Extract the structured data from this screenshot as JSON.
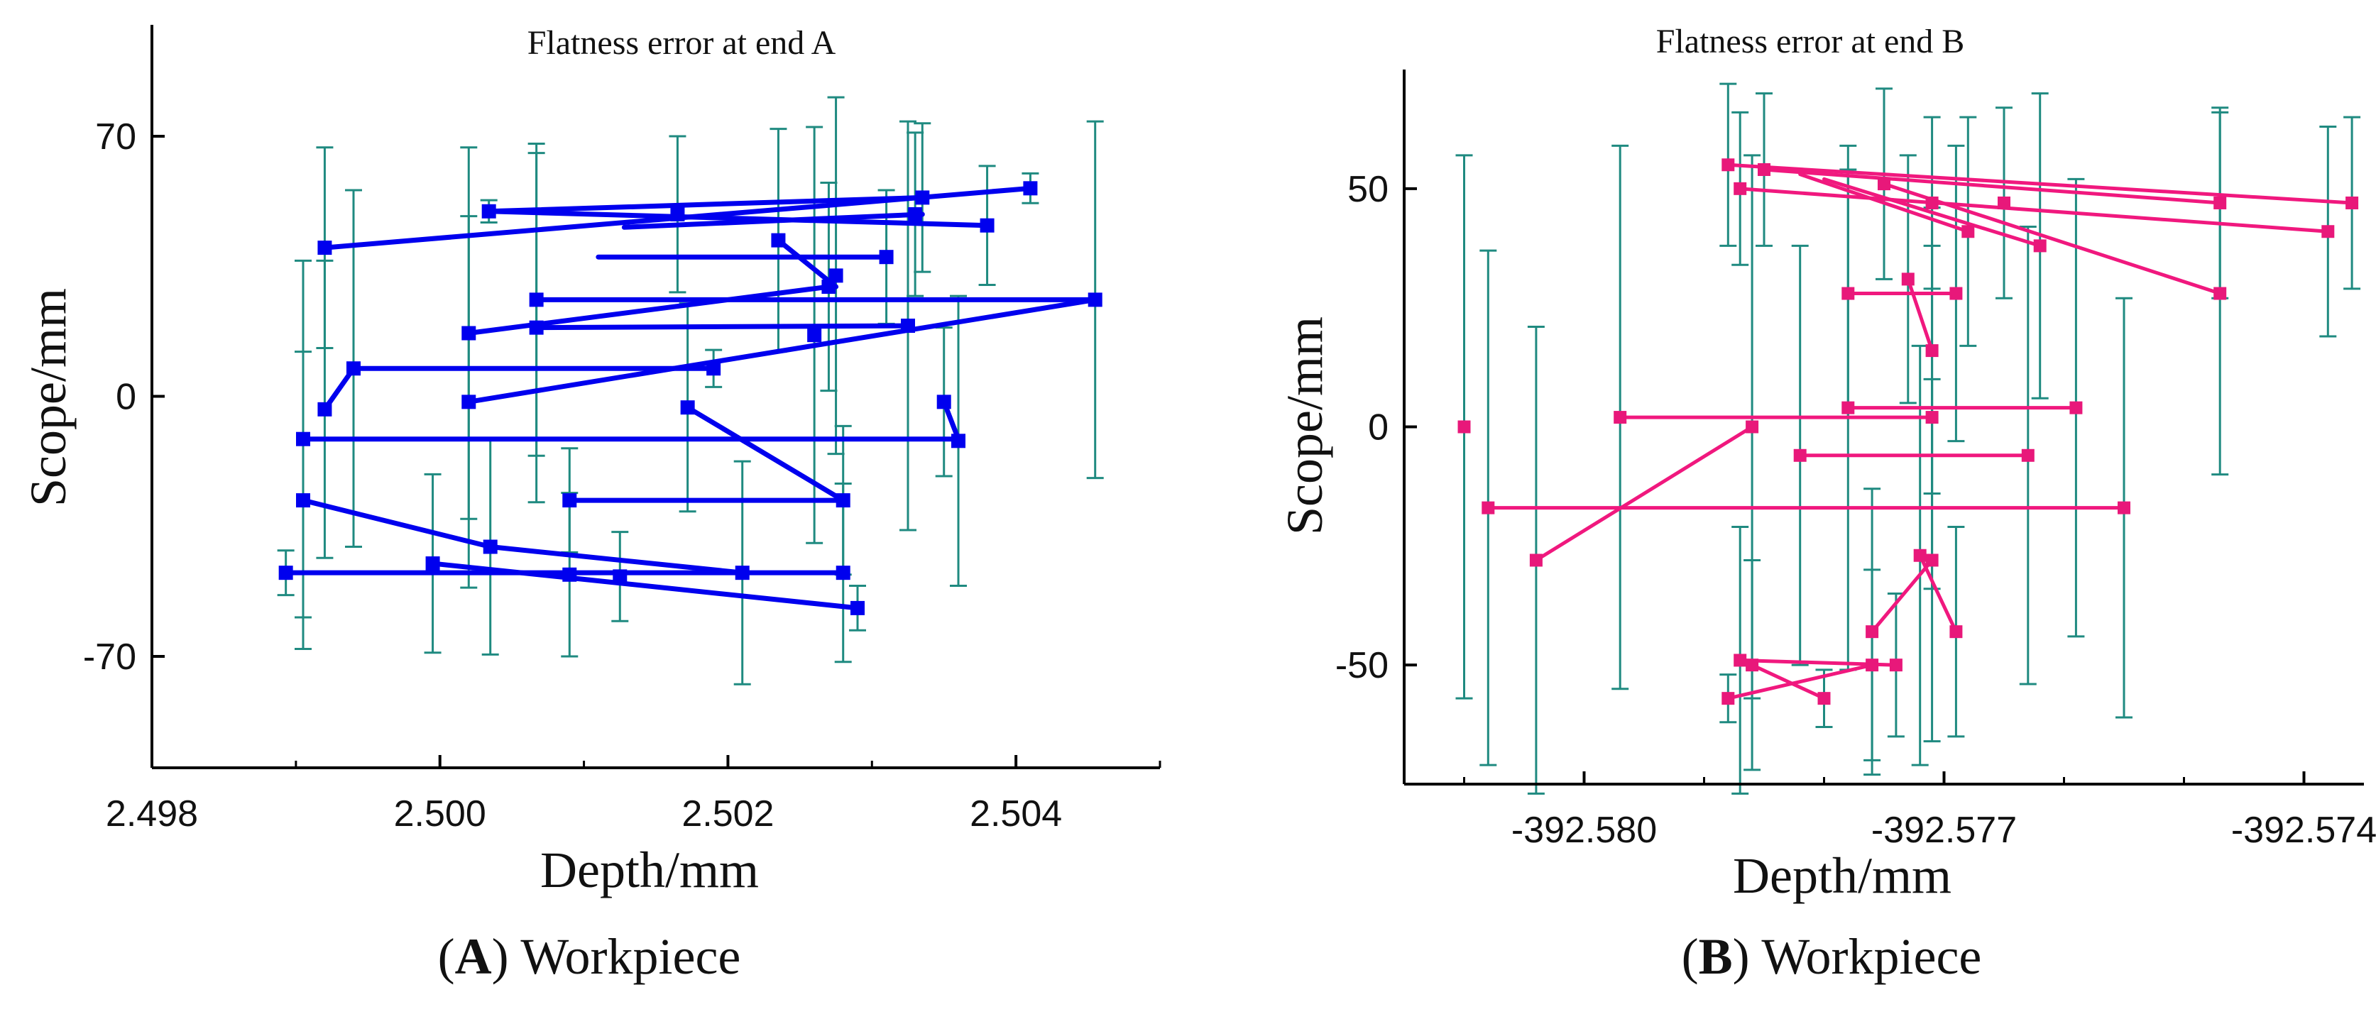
{
  "chart_data": [
    {
      "type": "scatter",
      "title": "Flatness error at end A",
      "xlabel": "Depth/mm",
      "ylabel": "Scope/mm",
      "caption_letter": "A",
      "caption_text": "Workpiece",
      "xlim": [
        2.498,
        2.505
      ],
      "ylim": [
        -100,
        100
      ],
      "x_ticks": [
        2.498,
        2.5,
        2.502,
        2.504
      ],
      "x_tick_labels": [
        "2.498",
        "2.500",
        "2.502",
        "2.504"
      ],
      "x_minor_ticks": [
        2.499,
        2.501,
        2.503,
        2.505
      ],
      "y_ticks": [
        -70,
        0,
        70
      ],
      "y_tick_labels": [
        "-70",
        "0",
        "70"
      ],
      "line_color": "#0000ee",
      "errorbar_color": "#1f8a80",
      "points": [
        {
          "x": 2.5035,
          "y": -1.5,
          "err": 20
        },
        {
          "x": 2.5031,
          "y": 37.5,
          "err": 18
        },
        {
          "x": 2.5036,
          "y": -12,
          "err": 39
        },
        {
          "x": 2.5041,
          "y": 56,
          "err": 4
        },
        {
          "x": 2.50455,
          "y": 26,
          "err": 48
        },
        {
          "x": 2.50034,
          "y": 49.8,
          "err": 3
        },
        {
          "x": 2.5027,
          "y": 29.5,
          "err": 28
        },
        {
          "x": 2.50235,
          "y": 42,
          "err": 30
        },
        {
          "x": 2.50172,
          "y": -3,
          "err": 28
        },
        {
          "x": 2.5028,
          "y": -28,
          "err": 20
        },
        {
          "x": 2.5009,
          "y": -28,
          "err": 14
        },
        {
          "x": 2.5033,
          "y": 49,
          "err": 22
        },
        {
          "x": 2.50067,
          "y": 26,
          "err": 42
        },
        {
          "x": 2.5038,
          "y": 46,
          "err": 16
        },
        {
          "x": 2.50165,
          "y": 49,
          "err": 21
        },
        {
          "x": 2.5026,
          "y": 16.5,
          "err": 56
        },
        {
          "x": 2.50275,
          "y": 32.5,
          "err": 48
        },
        {
          "x": 2.50325,
          "y": 19,
          "err": 55
        },
        {
          "x": 2.5002,
          "y": 17,
          "err": 50
        },
        {
          "x": 2.50067,
          "y": 18.5,
          "err": 47
        },
        {
          "x": 2.50335,
          "y": 53.5,
          "err": 20
        },
        {
          "x": 2.4992,
          "y": 40,
          "err": 27
        },
        {
          "x": 2.4992,
          "y": -3.5,
          "err": 40
        },
        {
          "x": 2.4994,
          "y": 7.5,
          "err": 48
        },
        {
          "x": 2.5019,
          "y": 7.5,
          "err": 5
        },
        {
          "x": 2.5002,
          "y": -1.5,
          "err": 50
        },
        {
          "x": 2.49905,
          "y": -11.5,
          "err": 48
        },
        {
          "x": 2.49905,
          "y": -28,
          "err": 40
        },
        {
          "x": 2.49893,
          "y": -47.5,
          "err": 6
        },
        {
          "x": 2.49995,
          "y": -45,
          "err": 24
        },
        {
          "x": 2.50035,
          "y": -40.5,
          "err": 29
        },
        {
          "x": 2.5021,
          "y": -47.5,
          "err": 30
        },
        {
          "x": 2.5028,
          "y": -47.5,
          "err": 24
        },
        {
          "x": 2.5029,
          "y": -57,
          "err": 6
        },
        {
          "x": 2.5009,
          "y": -48,
          "err": 22
        },
        {
          "x": 2.50125,
          "y": -48.5,
          "err": 12
        }
      ],
      "segments": [
        [
          2.4992,
          40,
          2.5041,
          56
        ],
        [
          2.50034,
          49.8,
          2.50335,
          53.5
        ],
        [
          2.50034,
          49.8,
          2.5038,
          46
        ],
        [
          2.50128,
          45.5,
          2.50335,
          49
        ],
        [
          2.5011,
          37.5,
          2.5031,
          37.5
        ],
        [
          2.50235,
          42,
          2.50275,
          29.5
        ],
        [
          2.5002,
          17,
          2.5027,
          29.5
        ],
        [
          2.50067,
          18.5,
          2.50325,
          19
        ],
        [
          2.50067,
          26,
          2.50455,
          26
        ],
        [
          2.5002,
          -1.5,
          2.50455,
          26
        ],
        [
          2.4992,
          -3.5,
          2.4994,
          7.5
        ],
        [
          2.4994,
          7.5,
          2.5019,
          7.5
        ],
        [
          2.49905,
          -11.5,
          2.5036,
          -11.5
        ],
        [
          2.5035,
          -1.5,
          2.5036,
          -11.5
        ],
        [
          2.50172,
          -3,
          2.5028,
          -28
        ],
        [
          2.5009,
          -28,
          2.5028,
          -28
        ],
        [
          2.49905,
          -28,
          2.50035,
          -40.5
        ],
        [
          2.50035,
          -40.5,
          2.5021,
          -47.5
        ],
        [
          2.49893,
          -47.5,
          2.5028,
          -47.5
        ],
        [
          2.49995,
          -45,
          2.5029,
          -57
        ]
      ]
    },
    {
      "type": "scatter",
      "title": "Flatness error at end B",
      "xlabel": "Depth/mm",
      "ylabel": "Scope/mm",
      "caption_letter": "B",
      "caption_text": "Workpiece",
      "xlim": [
        -392.5815,
        -392.5735
      ],
      "ylim": [
        -75,
        75
      ],
      "x_ticks": [
        -392.58,
        -392.577,
        -392.574
      ],
      "x_tick_labels": [
        "-392.580",
        "-392.577",
        "-392.574"
      ],
      "x_minor_ticks": [
        -392.581,
        -392.579,
        -392.578,
        -392.576,
        -392.575
      ],
      "y_ticks": [
        -50,
        0,
        50
      ],
      "y_tick_labels": [
        "-50",
        "0",
        "50"
      ],
      "line_color": "#f0187e",
      "marker_color": "#e8187a",
      "errorbar_color": "#1f8a80",
      "points": [
        {
          "x": -392.5788,
          "y": 55,
          "err": 17
        },
        {
          "x": -392.5787,
          "y": 50,
          "err": 16
        },
        {
          "x": -392.5785,
          "y": 54,
          "err": 16
        },
        {
          "x": -392.5775,
          "y": 51,
          "err": 20
        },
        {
          "x": -392.5771,
          "y": 47,
          "err": 18
        },
        {
          "x": -392.5765,
          "y": 47,
          "err": 20
        },
        {
          "x": -392.5762,
          "y": 38,
          "err": 32
        },
        {
          "x": -392.5768,
          "y": 41,
          "err": 24
        },
        {
          "x": -392.5747,
          "y": 47,
          "err": 20
        },
        {
          "x": -392.5747,
          "y": 28,
          "err": 38
        },
        {
          "x": -392.5738,
          "y": 41,
          "err": 22
        },
        {
          "x": -392.5736,
          "y": 47,
          "err": 18
        },
        {
          "x": -392.5778,
          "y": 28,
          "err": 26
        },
        {
          "x": -392.5773,
          "y": 31,
          "err": 26
        },
        {
          "x": -392.5769,
          "y": 28,
          "err": 31
        },
        {
          "x": -392.5771,
          "y": 16,
          "err": 30
        },
        {
          "x": -392.581,
          "y": 0,
          "err": 57
        },
        {
          "x": -392.5808,
          "y": -17,
          "err": 54
        },
        {
          "x": -392.5804,
          "y": -28,
          "err": 49
        },
        {
          "x": -392.5797,
          "y": 2,
          "err": 57
        },
        {
          "x": -392.5786,
          "y": 0,
          "err": 57
        },
        {
          "x": -392.5778,
          "y": 4,
          "err": 55
        },
        {
          "x": -392.5771,
          "y": 2,
          "err": 36
        },
        {
          "x": -392.5759,
          "y": 4,
          "err": 48
        },
        {
          "x": -392.5782,
          "y": -6,
          "err": 44
        },
        {
          "x": -392.5763,
          "y": -6,
          "err": 48
        },
        {
          "x": -392.5755,
          "y": -17,
          "err": 44
        },
        {
          "x": -392.5787,
          "y": -49,
          "err": 28
        },
        {
          "x": -392.5786,
          "y": -50,
          "err": 22
        },
        {
          "x": -392.5788,
          "y": -57,
          "err": 5
        },
        {
          "x": -392.578,
          "y": -57,
          "err": 6
        },
        {
          "x": -392.5776,
          "y": -50,
          "err": 20
        },
        {
          "x": -392.5774,
          "y": -50,
          "err": 15
        },
        {
          "x": -392.5772,
          "y": -27,
          "err": 44
        },
        {
          "x": -392.5771,
          "y": -28,
          "err": 38
        },
        {
          "x": -392.5776,
          "y": -43,
          "err": 30
        },
        {
          "x": -392.5769,
          "y": -43,
          "err": 22
        }
      ],
      "segments": [
        [
          -392.5788,
          55,
          -392.5736,
          47
        ],
        [
          -392.5785,
          54,
          -392.5747,
          47
        ],
        [
          -392.5787,
          50,
          -392.5738,
          41
        ],
        [
          -392.5775,
          51,
          -392.5747,
          28
        ],
        [
          -392.5782,
          53,
          -392.5768,
          41
        ],
        [
          -392.578,
          52,
          -392.5762,
          38
        ],
        [
          -392.5778,
          28,
          -392.5769,
          28
        ],
        [
          -392.5773,
          31,
          -392.5771,
          16
        ],
        [
          -392.5797,
          2,
          -392.5771,
          2
        ],
        [
          -392.5778,
          4,
          -392.5759,
          4
        ],
        [
          -392.5782,
          -6,
          -392.5763,
          -6
        ],
        [
          -392.5808,
          -17,
          -392.5755,
          -17
        ],
        [
          -392.5804,
          -28,
          -392.5786,
          0
        ],
        [
          -392.5787,
          -49,
          -392.5774,
          -50
        ],
        [
          -392.5788,
          -57,
          -392.5776,
          -50
        ],
        [
          -392.5786,
          -50,
          -392.578,
          -57
        ],
        [
          -392.5772,
          -27,
          -392.5769,
          -43
        ],
        [
          -392.5776,
          -43,
          -392.5771,
          -28
        ]
      ]
    }
  ]
}
